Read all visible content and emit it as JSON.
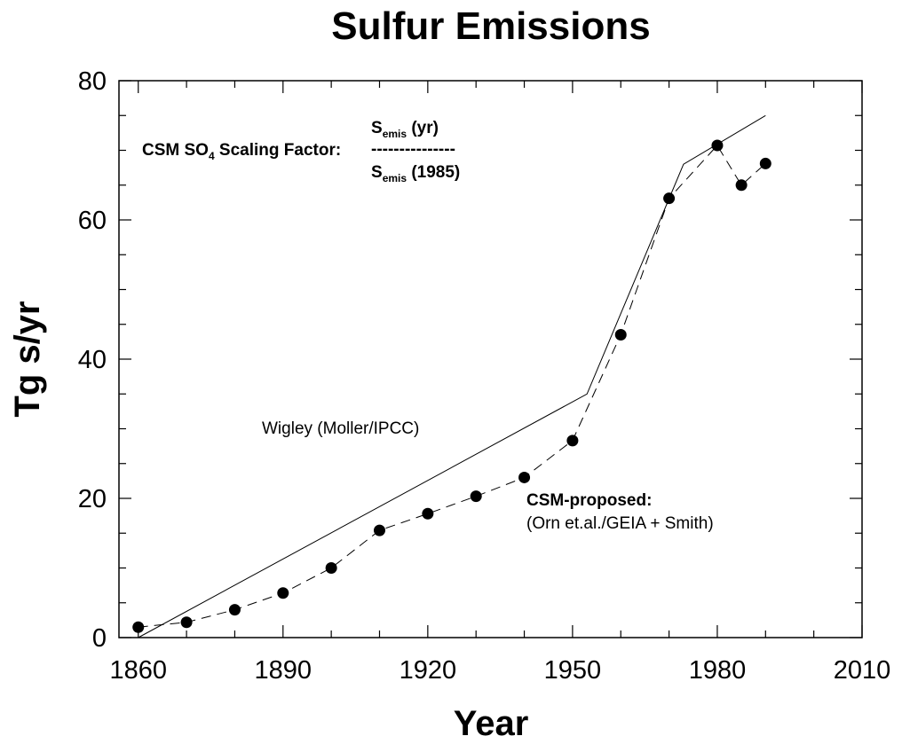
{
  "chart_data": {
    "type": "line",
    "title": "Sulfur Emissions",
    "xlabel": "Year",
    "ylabel": "Tg s/yr",
    "xlim": [
      1856,
      2010
    ],
    "ylim": [
      0,
      80
    ],
    "xticks": [
      1860,
      1890,
      1920,
      1950,
      1980,
      2010
    ],
    "yticks": [
      0,
      20,
      40,
      60,
      80
    ],
    "grid": false,
    "series": [
      {
        "name": "Wigley (Moller/IPCC)",
        "style": "solid",
        "x": [
          1860,
          1953,
          1973,
          1990
        ],
        "y": [
          0,
          35,
          68,
          75
        ]
      },
      {
        "name": "CSM-proposed: (Orn et.al./GEIA + Smith)",
        "style": "dashed-with-markers",
        "x": [
          1860,
          1870,
          1880,
          1890,
          1900,
          1910,
          1920,
          1930,
          1940,
          1950,
          1960,
          1970,
          1980,
          1985,
          1990
        ],
        "y": [
          1.5,
          2.2,
          4.0,
          6.4,
          10.0,
          15.4,
          17.8,
          20.3,
          23.0,
          28.3,
          43.5,
          63.1,
          70.7,
          65.0,
          68.1
        ]
      }
    ],
    "annotations": {
      "scaling_label_main": "CSM SO",
      "scaling_label_sub": "4",
      "scaling_label_tail": " Scaling Factor:",
      "numerator_main": "S",
      "numerator_sub": "emis",
      "numerator_tail": " (yr)",
      "fraction_bar": "---------------",
      "denominator_main": "S",
      "denominator_sub": "emis",
      "denominator_tail": " (1985)",
      "wigley_label": "Wigley (Moller/IPCC)",
      "csm_label_line1": "CSM-proposed:",
      "csm_label_line2": "(Orn et.al./GEIA + Smith)"
    }
  }
}
